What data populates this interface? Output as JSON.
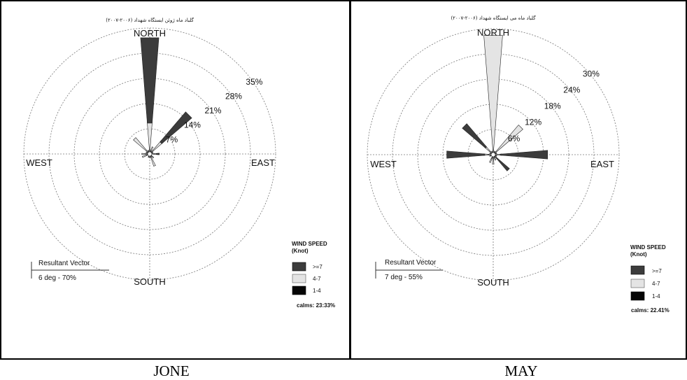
{
  "chart_data": [
    {
      "type": "wind-rose",
      "title": "گلباد ماه ژوئن ایستگاه شهداد (۲۰۰۶-۲۰۰۷)",
      "caption": "JONE",
      "directions": {
        "north": "NORTH",
        "south": "SOUTH",
        "east": "EAST",
        "west": "WEST"
      },
      "rings": [
        "7%",
        "14%",
        "21%",
        "28%",
        "35%"
      ],
      "ring_max": 35,
      "resultant": {
        "label": "Resultant Vector",
        "value": "6 deg - 70%"
      },
      "legend": {
        "title": "WIND SPEED",
        "subtitle": "(Knot)",
        "entries": [
          {
            "label": ">=7",
            "color": "#3c3c3c"
          },
          {
            "label": "4-7",
            "color": "#e4e4e4"
          },
          {
            "label": "1-4",
            "color": "#050505"
          }
        ],
        "calms": "calms: 23:33%"
      },
      "petals": [
        {
          "dir": 0,
          "segments": [
            0.8,
            7.8,
            23.2
          ]
        },
        {
          "dir": 22.5,
          "segments": [
            0.6,
            0.9,
            0
          ]
        },
        {
          "dir": 45,
          "segments": [
            0.8,
            3.6,
            10.4
          ]
        },
        {
          "dir": 67.5,
          "segments": [
            0.4,
            0,
            0
          ]
        },
        {
          "dir": 90,
          "segments": [
            1.2,
            0.6,
            0.3
          ]
        },
        {
          "dir": 135,
          "segments": [
            0.6,
            0.3,
            0
          ]
        },
        {
          "dir": 157.5,
          "segments": [
            0.6,
            2.4,
            0
          ]
        },
        {
          "dir": 180,
          "segments": [
            0.5,
            0,
            0
          ]
        },
        {
          "dir": 202.5,
          "segments": [
            0.4,
            0,
            0
          ]
        },
        {
          "dir": 247.5,
          "segments": [
            0.4,
            1.2,
            0
          ]
        },
        {
          "dir": 270,
          "segments": [
            1.0,
            0.6,
            0
          ]
        },
        {
          "dir": 292.5,
          "segments": [
            0.5,
            0,
            0
          ]
        },
        {
          "dir": 315,
          "segments": [
            0.8,
            4.6,
            0
          ]
        },
        {
          "dir": 337.5,
          "segments": [
            0.5,
            0,
            0
          ]
        }
      ]
    },
    {
      "type": "wind-rose",
      "title": "گلباد ماه می ایستگاه شهداد (۲۰۰۶-۲۰۰۷)",
      "caption": "MAY",
      "directions": {
        "north": "NORTH",
        "south": "SOUTH",
        "east": "EAST",
        "west": "WEST"
      },
      "rings": [
        "6%",
        "12%",
        "18%",
        "24%",
        "30%"
      ],
      "ring_max": 30,
      "resultant": {
        "label": "Resultant Vector",
        "value": "7 deg - 55%"
      },
      "legend": {
        "title": "WIND SPEED",
        "subtitle": "(Knot)",
        "entries": [
          {
            "label": ">=7",
            "color": "#3c3c3c"
          },
          {
            "label": "4-7",
            "color": "#e4e4e4"
          },
          {
            "label": "1-4",
            "color": "#050505"
          }
        ],
        "calms": "calms: 22.41%"
      },
      "petals": [
        {
          "dir": 0,
          "segments": [
            0.8,
            27.2,
            0
          ]
        },
        {
          "dir": 22.5,
          "segments": [
            0.4,
            0,
            0
          ]
        },
        {
          "dir": 45,
          "segments": [
            0.6,
            8.2,
            0
          ]
        },
        {
          "dir": 67.5,
          "segments": [
            0.4,
            0,
            0
          ]
        },
        {
          "dir": 90,
          "segments": [
            0.8,
            0.8,
            10.9
          ]
        },
        {
          "dir": 112.5,
          "segments": [
            0.4,
            0,
            0
          ]
        },
        {
          "dir": 135,
          "segments": [
            0.6,
            0.4,
            3.6
          ]
        },
        {
          "dir": 157.5,
          "segments": [
            0.5,
            0.4,
            0
          ]
        },
        {
          "dir": 180,
          "segments": [
            0.8,
            1.0,
            0
          ]
        },
        {
          "dir": 202.5,
          "segments": [
            1.0,
            0.5,
            0
          ]
        },
        {
          "dir": 247.5,
          "segments": [
            0.4,
            0,
            0
          ]
        },
        {
          "dir": 270,
          "segments": [
            1.2,
            0.8,
            8.6
          ]
        },
        {
          "dir": 292.5,
          "segments": [
            0.4,
            0,
            0
          ]
        },
        {
          "dir": 315,
          "segments": [
            1.0,
            1.4,
            6.8
          ]
        },
        {
          "dir": 337.5,
          "segments": [
            0.4,
            0,
            0
          ]
        }
      ]
    }
  ]
}
